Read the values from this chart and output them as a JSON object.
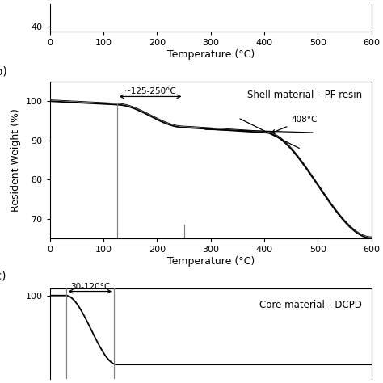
{
  "panel_b": {
    "title": "Shell material – PF resin",
    "xlabel": "Temperature (°C)",
    "ylabel": "Resident Weight (%)",
    "xlim": [
      0,
      600
    ],
    "ylim": [
      65,
      105
    ],
    "yticks": [
      70,
      80,
      90,
      100
    ],
    "xticks": [
      0,
      100,
      200,
      300,
      400,
      500,
      600
    ],
    "vline1": 125,
    "vline2": 250,
    "annotation_temp": "~125-250°C",
    "annotation_408": "408°C",
    "curve_color": "#000000",
    "tangent_color": "#000000"
  },
  "panel_a_bottom": {
    "ytick_label": "40",
    "xlabel": "Temperature (°C)",
    "xlim": [
      0,
      600
    ],
    "xticks": [
      0,
      100,
      200,
      300,
      400,
      500,
      600
    ]
  },
  "panel_c": {
    "title": "Core material-- DCPD",
    "xlim": [
      0,
      600
    ],
    "ylim": [
      -20,
      110
    ],
    "vline1": 30,
    "vline2": 120,
    "annotation_temp": "30-120°C",
    "ytick_100": 100
  },
  "fig_width": 4.74,
  "fig_height": 4.74,
  "dpi": 100
}
